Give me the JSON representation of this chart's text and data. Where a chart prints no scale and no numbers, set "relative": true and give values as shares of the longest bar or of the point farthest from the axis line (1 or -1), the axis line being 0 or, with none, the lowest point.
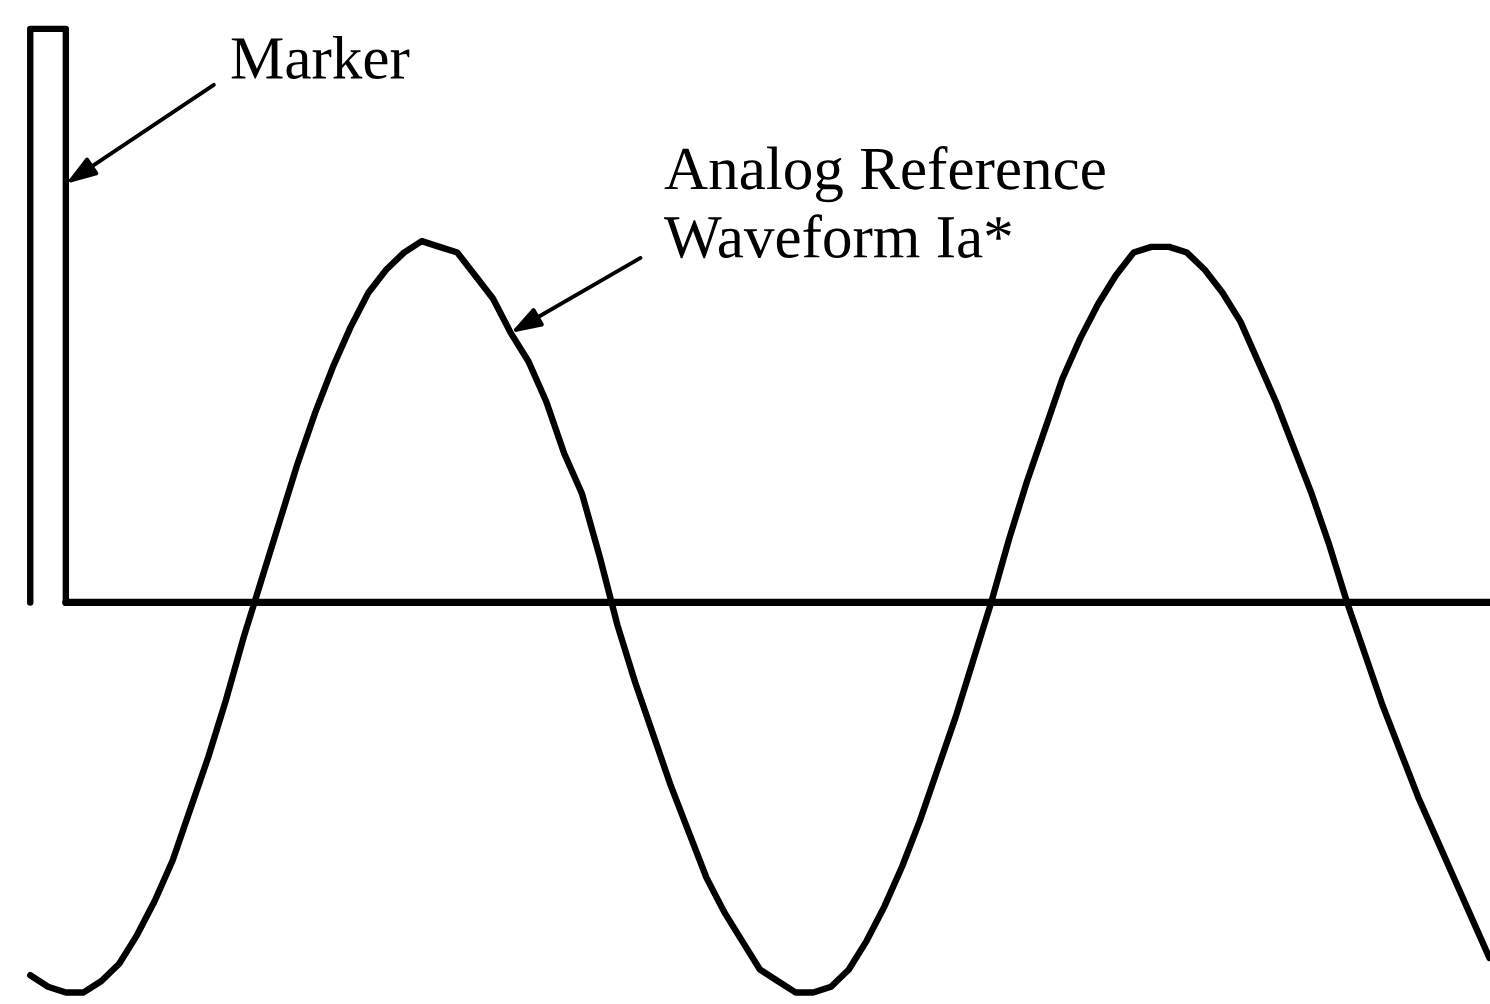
{
  "chart_data": {
    "type": "line",
    "relative": true,
    "categories": [
      null,
      null,
      null,
      null,
      null,
      null,
      null,
      null,
      null,
      null,
      null,
      null,
      null,
      null,
      null,
      null,
      null,
      null,
      null,
      null,
      null,
      null,
      null,
      null,
      null,
      null,
      null,
      null,
      null,
      null,
      null,
      null,
      null,
      null,
      null,
      null,
      null,
      null,
      null,
      null,
      null,
      null,
      null,
      null,
      null,
      null,
      null,
      null,
      null,
      null,
      null,
      null,
      null,
      null,
      null,
      null,
      null,
      null,
      null,
      null,
      null,
      null,
      null,
      null,
      null,
      null,
      null,
      null,
      null,
      null,
      null,
      null,
      null,
      null,
      null,
      null,
      null,
      null,
      null,
      null,
      null,
      null,
      null
    ],
    "series": [
      {
        "name": "Marker",
        "type": "step",
        "color": "#000000",
        "values": [
          0,
          1,
          1,
          0,
          null,
          null,
          null,
          null,
          null,
          null,
          null,
          null,
          null,
          null,
          null,
          null,
          null,
          null,
          null,
          null,
          null,
          null,
          null,
          null,
          null,
          null,
          null,
          null,
          null,
          null,
          null,
          null,
          null,
          null,
          null,
          null,
          null,
          null,
          null,
          null,
          null,
          null,
          null,
          null,
          null,
          null,
          null,
          null,
          null,
          null,
          null,
          null,
          null,
          null,
          null,
          null,
          null,
          null,
          null,
          null,
          null,
          null,
          null,
          null,
          null,
          null,
          null,
          null,
          null,
          null,
          null,
          null,
          null,
          null,
          null,
          null,
          null,
          null,
          null,
          null,
          null,
          null,
          null
        ]
      },
      {
        "name": "Analog Reference\nWaveform Ia*",
        "color": "#000000",
        "values": [
          -0.65,
          -0.67,
          -0.68,
          -0.68,
          -0.66,
          -0.63,
          -0.58,
          -0.52,
          -0.45,
          -0.36,
          -0.27,
          -0.17,
          -0.06,
          0.04,
          0.14,
          0.24,
          0.33,
          0.41,
          0.48,
          0.54,
          0.58,
          0.61,
          0.63,
          0.62,
          0.61,
          0.57,
          0.53,
          0.47,
          0.42,
          0.35,
          0.26,
          0.19,
          0.08,
          -0.04,
          -0.14,
          -0.23,
          -0.32,
          -0.4,
          -0.48,
          -0.54,
          -0.59,
          -0.64,
          -0.66,
          -0.68,
          -0.68,
          -0.67,
          -0.64,
          -0.59,
          -0.53,
          -0.46,
          -0.38,
          -0.29,
          -0.2,
          -0.1,
          0.0,
          0.11,
          0.21,
          0.3,
          0.39,
          0.46,
          0.52,
          0.57,
          0.61,
          0.62,
          0.62,
          0.61,
          0.58,
          0.54,
          0.49,
          0.42,
          0.35,
          0.27,
          0.19,
          0.1,
          0.0,
          -0.09,
          -0.18,
          -0.26,
          -0.34,
          -0.41,
          -0.48,
          -0.55,
          -0.62
        ]
      }
    ]
  }
}
